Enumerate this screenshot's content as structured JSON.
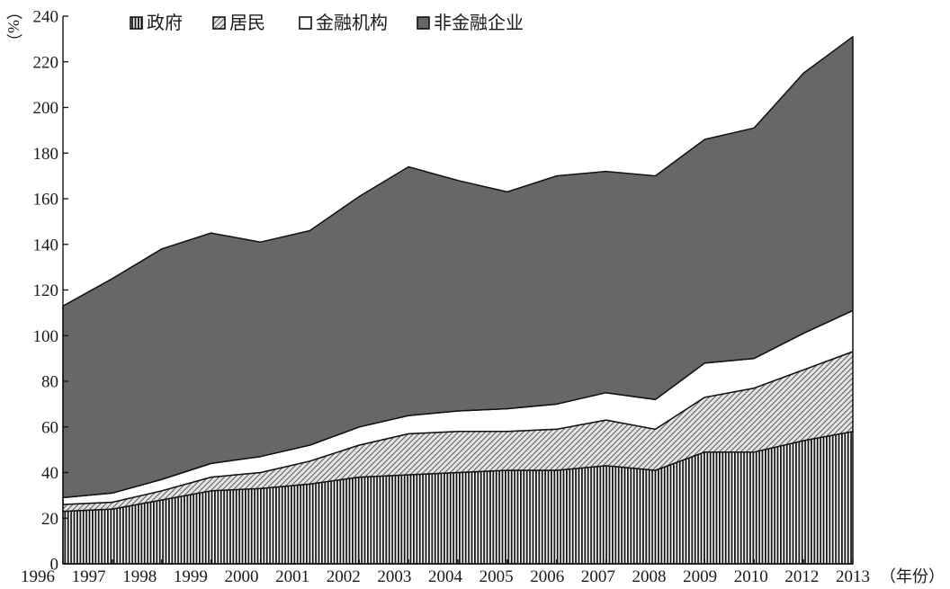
{
  "chart_data": {
    "type": "area",
    "stacked": true,
    "title": "",
    "xlabel": "（年份）",
    "ylabel": "（%）",
    "ylim": [
      0,
      240
    ],
    "yticks": [
      0,
      20,
      40,
      60,
      80,
      100,
      120,
      140,
      160,
      180,
      200,
      220,
      240
    ],
    "grid": false,
    "legend": "top",
    "categories": [
      "1996",
      "1997",
      "1998",
      "1999",
      "2000",
      "2001",
      "2002",
      "2003",
      "2004",
      "2005",
      "2006",
      "2007",
      "2008",
      "2009",
      "2010",
      "2012",
      "2013"
    ],
    "series": [
      {
        "name": "政府",
        "color": "#151515",
        "values": [
          23,
          24,
          28,
          32,
          33,
          35,
          38,
          39,
          40,
          41,
          41,
          43,
          41,
          49,
          49,
          54,
          58
        ]
      },
      {
        "name": "居民",
        "color": "#9e9e9e",
        "values": [
          3,
          3,
          4,
          6,
          7,
          10,
          14,
          18,
          18,
          17,
          18,
          20,
          18,
          24,
          28,
          31,
          35
        ]
      },
      {
        "name": "金融机构",
        "color": "#ffffff",
        "values": [
          3,
          4,
          5,
          6,
          7,
          7,
          8,
          8,
          9,
          10,
          11,
          12,
          13,
          15,
          13,
          16,
          18
        ]
      },
      {
        "name": "非金融企业",
        "color": "#676767",
        "values": [
          84,
          94,
          101,
          101,
          94,
          94,
          101,
          109,
          101,
          95,
          100,
          97,
          98,
          98,
          101,
          114,
          120
        ]
      }
    ]
  }
}
